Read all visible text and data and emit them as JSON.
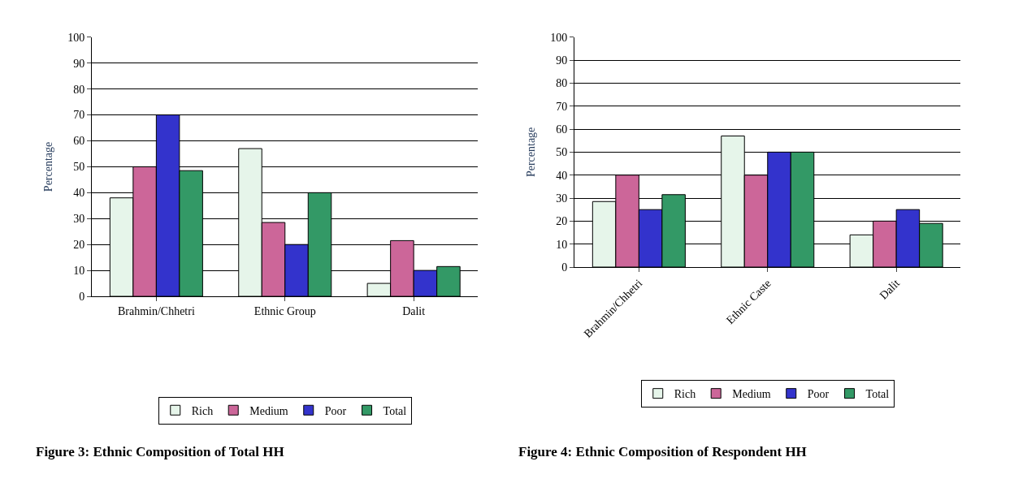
{
  "chart_data": [
    {
      "type": "bar",
      "ylabel": "Percentage",
      "categories": [
        "Brahmin/Chhetri",
        "Ethnic Group",
        "Dalit"
      ],
      "ylim": [
        0,
        100
      ],
      "yticks": [
        0,
        10,
        20,
        30,
        40,
        50,
        60,
        70,
        80,
        90,
        100
      ],
      "grid": "y",
      "legend": "bottom",
      "series": [
        {
          "name": "Rich",
          "color": "#e6f5ea",
          "values": [
            38,
            57,
            5
          ]
        },
        {
          "name": "Medium",
          "color": "#cc6699",
          "values": [
            50,
            28.5,
            21.5
          ]
        },
        {
          "name": "Poor",
          "color": "#3333cc",
          "values": [
            70,
            20,
            10
          ]
        },
        {
          "name": "Total",
          "color": "#339966",
          "values": [
            48.5,
            40,
            11.5
          ]
        }
      ],
      "annotations": [
        "Figure 3: Ethnic Composition of Total HH"
      ]
    },
    {
      "type": "bar",
      "ylabel": "Percentage",
      "categories": [
        "Brahmin/Chhetri",
        "Ethnic Caste",
        "Dalit"
      ],
      "ylim": [
        0,
        100
      ],
      "yticks": [
        0,
        10,
        20,
        30,
        40,
        50,
        60,
        70,
        80,
        90,
        100
      ],
      "grid": "y",
      "legend": "bottom",
      "series": [
        {
          "name": "Rich",
          "color": "#e6f5ea",
          "values": [
            28.5,
            57,
            14
          ]
        },
        {
          "name": "Medium",
          "color": "#cc6699",
          "values": [
            40,
            40,
            20
          ]
        },
        {
          "name": "Poor",
          "color": "#3333cc",
          "values": [
            25,
            50,
            25
          ]
        },
        {
          "name": "Total",
          "color": "#339966",
          "values": [
            31.5,
            50,
            19
          ]
        }
      ],
      "annotations": [
        "Figure 4: Ethnic Composition of Respondent HH"
      ]
    }
  ]
}
